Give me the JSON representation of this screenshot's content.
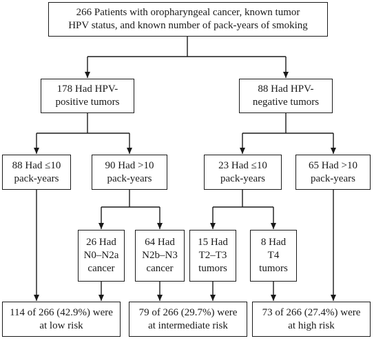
{
  "diagram": {
    "nodes": [
      {
        "id": "root",
        "lines": "266 Patients with oropharyngeal cancer, known tumor\nHPV status, and known number of pack-years of smoking"
      },
      {
        "id": "hpv-pos",
        "lines": "178 Had HPV-\npositive tumors"
      },
      {
        "id": "hpv-neg",
        "lines": "88 Had HPV-\nnegative tumors"
      },
      {
        "id": "pos-low-smoke",
        "lines": "88 Had ≤10\npack-years"
      },
      {
        "id": "pos-high-smoke",
        "lines": "90 Had >10\npack-years"
      },
      {
        "id": "neg-low-smoke",
        "lines": "23 Had ≤10\npack-years"
      },
      {
        "id": "neg-high-smoke",
        "lines": "65 Had >10\npack-years"
      },
      {
        "id": "n0-n2a",
        "lines": "26 Had\nN0–N2a\ncancer"
      },
      {
        "id": "n2b-n3",
        "lines": "64 Had\nN2b–N3\ncancer"
      },
      {
        "id": "t2-t3",
        "lines": "15 Had\nT2–T3\ntumors"
      },
      {
        "id": "t4",
        "lines": "8 Had\nT4\ntumors"
      },
      {
        "id": "low-risk",
        "lines": "114 of 266 (42.9%) were\nat low risk"
      },
      {
        "id": "intermediate-risk",
        "lines": "79 of 266 (29.7%) were\nat intermediate risk"
      },
      {
        "id": "high-risk",
        "lines": "73 of 266 (27.4%) were\nat high risk"
      }
    ],
    "edges": [
      [
        "root",
        "hpv-pos"
      ],
      [
        "root",
        "hpv-neg"
      ],
      [
        "hpv-pos",
        "pos-low-smoke"
      ],
      [
        "hpv-pos",
        "pos-high-smoke"
      ],
      [
        "hpv-neg",
        "neg-low-smoke"
      ],
      [
        "hpv-neg",
        "neg-high-smoke"
      ],
      [
        "pos-high-smoke",
        "n0-n2a"
      ],
      [
        "pos-high-smoke",
        "n2b-n3"
      ],
      [
        "neg-low-smoke",
        "t2-t3"
      ],
      [
        "neg-low-smoke",
        "t4"
      ],
      [
        "pos-low-smoke",
        "low-risk"
      ],
      [
        "n0-n2a",
        "low-risk"
      ],
      [
        "n2b-n3",
        "intermediate-risk"
      ],
      [
        "t2-t3",
        "intermediate-risk"
      ],
      [
        "t4",
        "high-risk"
      ],
      [
        "neg-high-smoke",
        "high-risk"
      ]
    ],
    "colors": {
      "line": "#1a1a1a",
      "box_fill": "#ffffff",
      "text": "#1a1a1a"
    }
  }
}
